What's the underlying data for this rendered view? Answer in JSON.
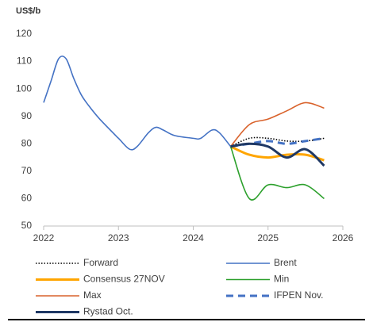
{
  "chart_data": {
    "type": "line",
    "ylabel": "US$/b",
    "x": [
      2022.0,
      2022.1,
      2022.2,
      2022.3,
      2022.4,
      2022.5,
      2022.6,
      2022.75,
      2023.0,
      2023.15,
      2023.25,
      2023.4,
      2023.5,
      2023.6,
      2023.75,
      2024.0,
      2024.1,
      2024.25,
      2024.35,
      2024.5,
      2024.75,
      2025.0,
      2025.25,
      2025.5,
      2025.75
    ],
    "xlim": [
      2022,
      2026
    ],
    "xticks": [
      2022,
      2023,
      2024,
      2025,
      2026
    ],
    "ylim": [
      50,
      120
    ],
    "yticks": [
      50,
      60,
      70,
      80,
      90,
      100,
      110,
      120
    ],
    "series": [
      {
        "name": "Forward",
        "color": "#000000",
        "dash": "dotted",
        "values": [
          null,
          null,
          null,
          null,
          null,
          null,
          null,
          null,
          null,
          null,
          null,
          null,
          null,
          null,
          null,
          null,
          null,
          null,
          null,
          79,
          82,
          82,
          81,
          81,
          82
        ]
      },
      {
        "name": "Brent",
        "color": "#4472c4",
        "values": [
          95,
          103,
          111,
          111,
          104,
          98,
          94,
          89,
          82,
          78,
          79,
          84,
          86,
          85,
          83,
          82,
          82,
          85,
          84,
          79,
          null,
          null,
          null,
          null,
          null
        ]
      },
      {
        "name": "Consensus 27NOV",
        "color": "#ffa500",
        "width": 3,
        "values": [
          null,
          null,
          null,
          null,
          null,
          null,
          null,
          null,
          null,
          null,
          null,
          null,
          null,
          null,
          null,
          null,
          null,
          null,
          null,
          79,
          76,
          75,
          76,
          76,
          74
        ]
      },
      {
        "name": "Min",
        "color": "#2ca02c",
        "values": [
          null,
          null,
          null,
          null,
          null,
          null,
          null,
          null,
          null,
          null,
          null,
          null,
          null,
          null,
          null,
          null,
          null,
          null,
          null,
          79,
          60,
          65,
          64,
          65,
          60
        ]
      },
      {
        "name": "Max",
        "color": "#d9622b",
        "values": [
          null,
          null,
          null,
          null,
          null,
          null,
          null,
          null,
          null,
          null,
          null,
          null,
          null,
          null,
          null,
          null,
          null,
          null,
          null,
          79,
          87,
          89,
          92,
          95,
          93
        ]
      },
      {
        "name": "IFPEN Nov.",
        "color": "#4472c4",
        "dash": "dashed",
        "width": 3,
        "values": [
          null,
          null,
          null,
          null,
          null,
          null,
          null,
          null,
          null,
          null,
          null,
          null,
          null,
          null,
          null,
          null,
          null,
          null,
          null,
          79,
          80,
          81,
          80,
          81,
          82
        ]
      },
      {
        "name": "Rystad Oct.",
        "color": "#1f3864",
        "width": 3,
        "values": [
          null,
          null,
          null,
          null,
          null,
          null,
          null,
          null,
          null,
          null,
          null,
          null,
          null,
          null,
          null,
          null,
          null,
          null,
          null,
          79,
          80,
          79,
          75,
          78,
          72
        ]
      }
    ]
  }
}
